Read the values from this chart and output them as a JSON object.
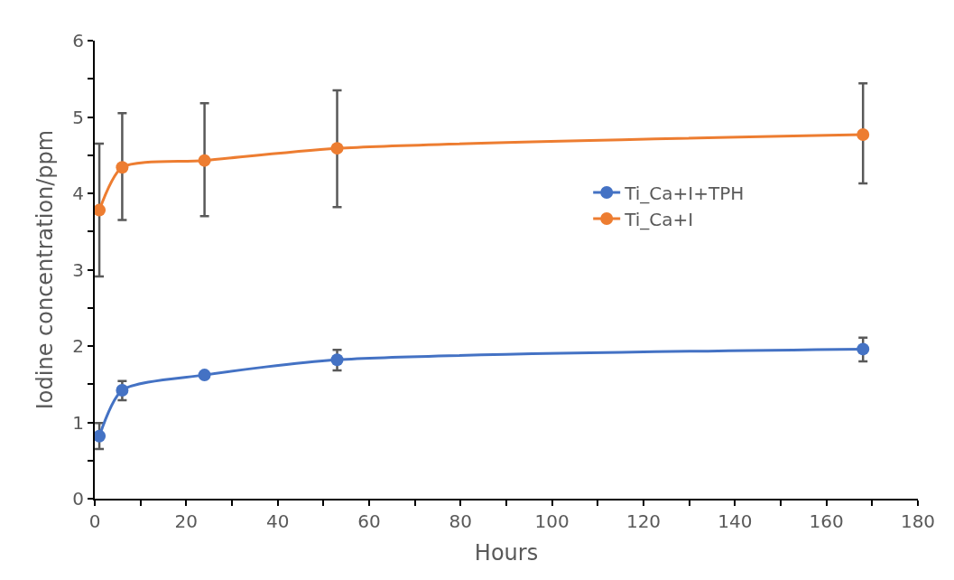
{
  "chart_data": {
    "type": "line",
    "xlabel": "Hours",
    "ylabel": "Iodine concentration/ppm",
    "x": [
      1,
      6,
      24,
      53,
      168
    ],
    "series": [
      {
        "name": "Ti_Ca+I+TPH",
        "color": "#4472c4",
        "values": [
          0.82,
          1.42,
          1.62,
          1.82,
          1.96
        ],
        "errors": [
          [
            0.65,
            0.99
          ],
          [
            1.29,
            1.54
          ],
          null,
          [
            1.68,
            1.95
          ],
          [
            1.8,
            2.11
          ]
        ]
      },
      {
        "name": "Ti_Ca+I",
        "color": "#ed7d31",
        "values": [
          3.78,
          4.34,
          4.43,
          4.59,
          4.77
        ],
        "errors": [
          [
            2.91,
            4.65
          ],
          [
            3.65,
            5.05
          ],
          [
            3.7,
            5.18
          ],
          [
            3.82,
            5.35
          ],
          [
            4.13,
            5.44
          ]
        ]
      }
    ],
    "xlim": [
      0,
      180
    ],
    "xticks": [
      0,
      {
        "value": 10,
        "label": null
      },
      20,
      {
        "value": 30,
        "label": null
      },
      40,
      {
        "value": 50,
        "label": null
      },
      60,
      {
        "value": 70,
        "label": null
      },
      80,
      {
        "value": 90,
        "label": null
      },
      100,
      {
        "value": 110,
        "label": null
      },
      120,
      {
        "value": 130,
        "label": null
      },
      140,
      {
        "value": 150,
        "label": null
      },
      160,
      {
        "value": 170,
        "label": null
      },
      180
    ],
    "ylim": [
      0,
      6
    ],
    "yticks": [
      0,
      {
        "value": 0.5,
        "label": null
      },
      1,
      {
        "value": 1.5,
        "label": null
      },
      2,
      {
        "value": 2.5,
        "label": null
      },
      3,
      {
        "value": 3.5,
        "label": null
      },
      4,
      {
        "value": 4.5,
        "label": null
      },
      5,
      {
        "value": 5.5,
        "label": null
      },
      6
    ],
    "legend": "right",
    "marker": "circle",
    "line_style": "solid"
  }
}
